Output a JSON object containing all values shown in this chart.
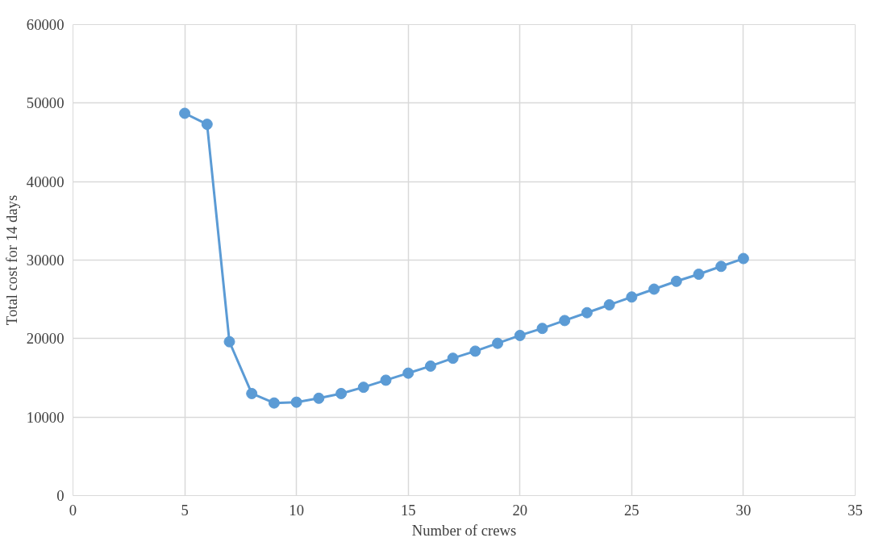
{
  "chart_data": {
    "type": "line",
    "xlabel": "Number of crews",
    "ylabel": "Total cost for 14 days",
    "x": [
      5,
      6,
      7,
      8,
      9,
      10,
      11,
      12,
      13,
      14,
      15,
      16,
      17,
      18,
      19,
      20,
      21,
      22,
      23,
      24,
      25,
      26,
      27,
      28,
      29,
      30
    ],
    "series": [
      {
        "color": "#5b9bd5",
        "values": [
          48700,
          47300,
          19600,
          13000,
          11800,
          11900,
          12400,
          13000,
          13800,
          14700,
          15600,
          16500,
          17500,
          18400,
          19400,
          20400,
          21300,
          22300,
          23300,
          24300,
          25300,
          26300,
          27300,
          28200,
          29200,
          30200
        ]
      }
    ],
    "xlim": [
      0,
      35
    ],
    "xticks": [
      0,
      5,
      10,
      15,
      20,
      25,
      30,
      35
    ],
    "ylim": [
      0,
      60000
    ],
    "yticks": [
      0,
      10000,
      20000,
      30000,
      40000,
      50000,
      60000
    ],
    "grid": true,
    "marker": "circle",
    "line_style": "solid"
  }
}
